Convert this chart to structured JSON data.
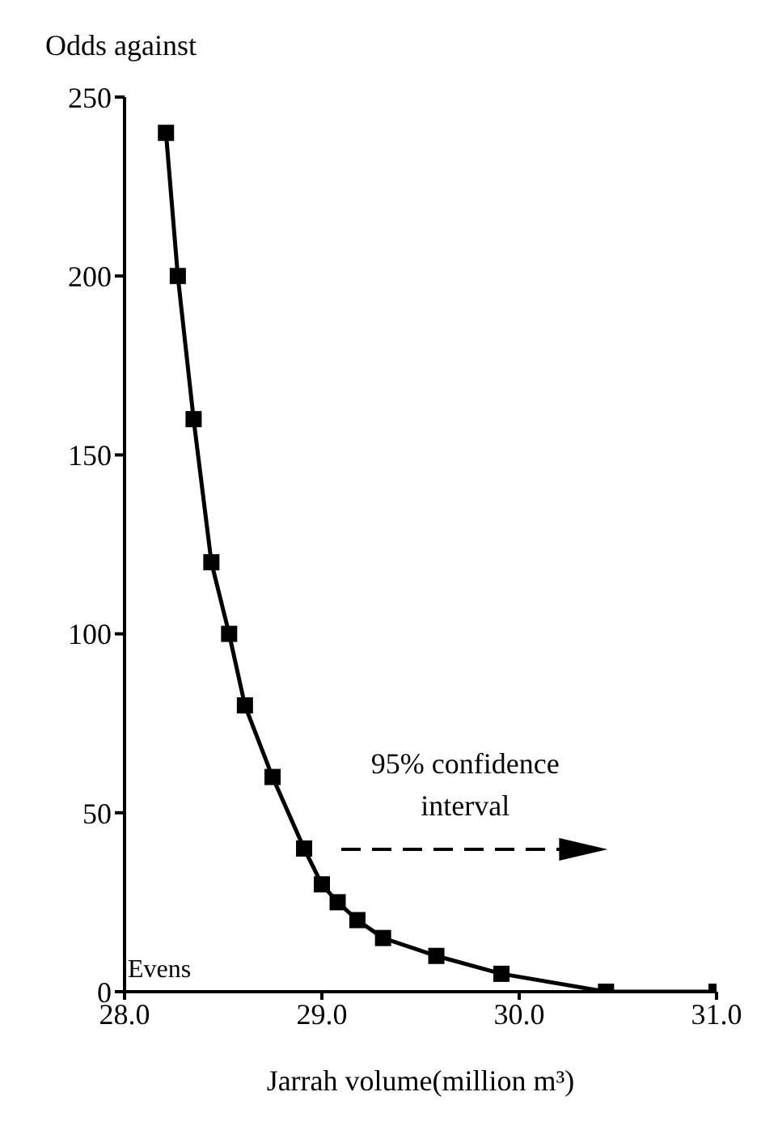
{
  "chart_data": {
    "type": "line",
    "ylabel": "Odds against",
    "xlabel": "Jarrah volume(million m³)",
    "x": [
      28.21,
      28.27,
      28.35,
      28.44,
      28.53,
      28.61,
      28.75,
      28.91,
      29.0,
      29.08,
      29.18,
      29.31,
      29.58,
      29.91,
      30.44,
      31.0
    ],
    "series": [
      {
        "color": "#000000",
        "values": [
          240,
          200,
          160,
          120,
          100,
          80,
          60,
          40,
          30,
          25,
          20,
          15,
          10,
          5,
          0,
          0
        ]
      }
    ],
    "xlim": [
      28,
      31
    ],
    "xticks": [
      {
        "value": 28,
        "label": "28.0"
      },
      {
        "value": 29,
        "label": "29.0"
      },
      {
        "value": 30,
        "label": "30.0"
      },
      {
        "value": 31,
        "label": "31.0"
      }
    ],
    "ylim": [
      0,
      250
    ],
    "yticks": [
      0,
      50,
      100,
      150,
      200,
      250
    ],
    "annotations": [
      "Evens",
      "95% confidence interval"
    ],
    "marker": "square",
    "line_style": "solid",
    "grid": false,
    "legend": false
  }
}
